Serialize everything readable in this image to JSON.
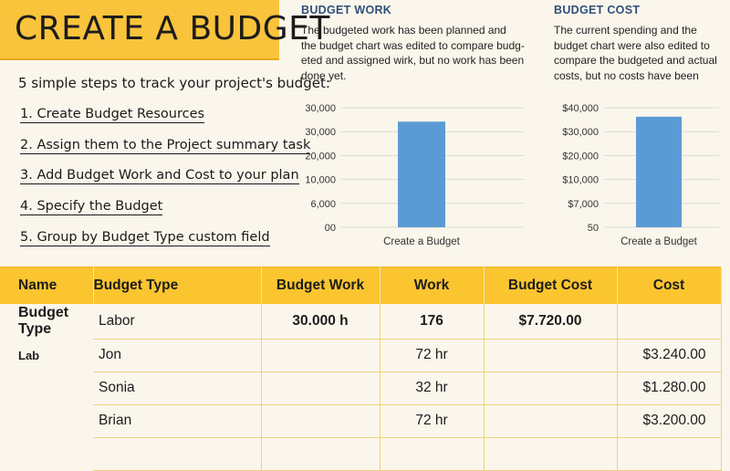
{
  "title": "CREATE A BUDGET",
  "intro": "5 simple steps to track your project's budget:",
  "steps": [
    "1. Create Budget Resources",
    "2. Assign them to the Project summary task",
    "3. Add Budget Work and Cost to your plan",
    "4. Specify the Budget",
    "5. Group by Budget Type custom field"
  ],
  "budget_work": {
    "heading": "BUDGET WORK",
    "description": [
      "The budgeted work has been planned and",
      "the budget chart was edited to compare budg-",
      "eted and assigned wirk, but no work has been",
      "done yet."
    ]
  },
  "budget_cost": {
    "heading": "BUDGET COST",
    "description": [
      "The current spending and the",
      "budget chart were also edited to",
      "compare the budgeted and actual",
      "costs, but no costs have been"
    ]
  },
  "chart_data": [
    {
      "type": "bar",
      "title": "",
      "categories": [
        "Create a Budget"
      ],
      "values": [
        26500
      ],
      "ylim": [
        0,
        30000
      ],
      "ytick_labels": [
        "00",
        "6,000",
        "10,000",
        "20,000",
        "30,000",
        "30,000"
      ],
      "bar_color": "#5b9bd5",
      "grid": true
    },
    {
      "type": "bar",
      "title": "",
      "categories": [
        "Create a Budget"
      ],
      "values": [
        37000
      ],
      "ylim": [
        0,
        40000
      ],
      "ytick_labels": [
        "50",
        "$7,000",
        "$10,000",
        "$20,000",
        "$30,000",
        "$40,000"
      ],
      "bar_color": "#5b9bd5",
      "grid": true
    }
  ],
  "table": {
    "headers": [
      "Name",
      "Budget Type",
      "Budget Work",
      "Work",
      "Budget Cost",
      "Cost"
    ],
    "rows": [
      {
        "name": "Budget Type",
        "type": "Labor",
        "budget_work": "30.000 h",
        "work": "176",
        "budget_cost": "$7.720.00",
        "cost": ""
      },
      {
        "name": "Lab",
        "type": "Jon",
        "budget_work": "",
        "work": "72 hr",
        "budget_cost": "",
        "cost": "$3.240.00"
      },
      {
        "name": "",
        "type": "Sonia",
        "budget_work": "",
        "work": "32 hr",
        "budget_cost": "",
        "cost": "$1.280.00"
      },
      {
        "name": "",
        "type": "Brian",
        "budget_work": "",
        "work": "72 hr",
        "budget_cost": "",
        "cost": "$3.200.00"
      },
      {
        "name": "",
        "type": "",
        "budget_work": "",
        "work": "",
        "budget_cost": "",
        "cost": ""
      }
    ]
  },
  "colors": {
    "accent": "#f9c33c",
    "heading_blue": "#2f4f7c",
    "bar": "#5b9bd5",
    "background": "#fbf6ec"
  }
}
